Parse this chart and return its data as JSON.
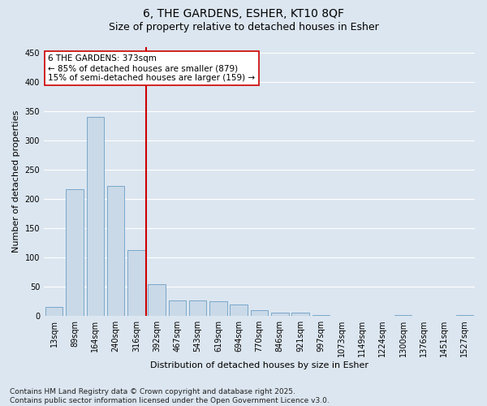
{
  "title_line1": "6, THE GARDENS, ESHER, KT10 8QF",
  "title_line2": "Size of property relative to detached houses in Esher",
  "xlabel": "Distribution of detached houses by size in Esher",
  "ylabel": "Number of detached properties",
  "categories": [
    "13sqm",
    "89sqm",
    "164sqm",
    "240sqm",
    "316sqm",
    "392sqm",
    "467sqm",
    "543sqm",
    "619sqm",
    "694sqm",
    "770sqm",
    "846sqm",
    "921sqm",
    "997sqm",
    "1073sqm",
    "1149sqm",
    "1224sqm",
    "1300sqm",
    "1376sqm",
    "1451sqm",
    "1527sqm"
  ],
  "values": [
    15,
    217,
    340,
    222,
    112,
    54,
    27,
    26,
    25,
    19,
    10,
    6,
    5,
    1,
    0,
    0,
    0,
    1,
    0,
    0,
    2
  ],
  "bar_color": "#c9d9e8",
  "bar_edge_color": "#6b9ec4",
  "vline_color": "#cc0000",
  "annotation_text": "6 THE GARDENS: 373sqm\n← 85% of detached houses are smaller (879)\n15% of semi-detached houses are larger (159) →",
  "annotation_box_color": "#ffffff",
  "annotation_box_edge": "#cc0000",
  "ylim": [
    0,
    460
  ],
  "yticks": [
    0,
    50,
    100,
    150,
    200,
    250,
    300,
    350,
    400,
    450
  ],
  "bg_color": "#dce6f0",
  "plot_bg_color": "#dce6f0",
  "footer_text": "Contains HM Land Registry data © Crown copyright and database right 2025.\nContains public sector information licensed under the Open Government Licence v3.0.",
  "grid_color": "#ffffff",
  "title_fontsize": 10,
  "subtitle_fontsize": 9,
  "tick_fontsize": 7,
  "axis_label_fontsize": 8,
  "annotation_fontsize": 7.5,
  "footer_fontsize": 6.5
}
